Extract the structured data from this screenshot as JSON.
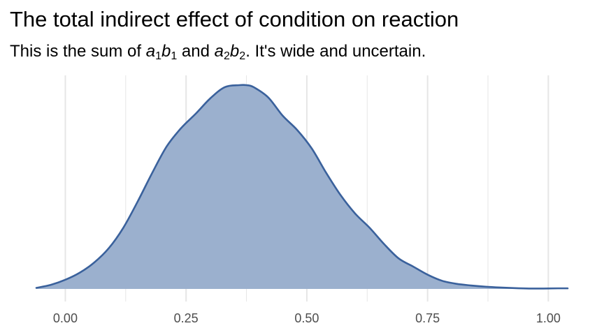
{
  "chart_data": {
    "type": "area",
    "title": "The total indirect effect of condition on reaction",
    "subtitle": {
      "before": "This is the sum of ",
      "t1_var_a": "a",
      "t1_sub_a": "1",
      "t1_var_b": "b",
      "t1_sub_b": "1",
      "middle": " and ",
      "t2_var_a": "a",
      "t2_sub_a": "2",
      "t2_var_b": "b",
      "t2_sub_b": "2",
      "after": ". It's wide and uncertain."
    },
    "xlabel": "",
    "ylabel": "",
    "xlim": [
      -0.06,
      1.04
    ],
    "ylim": [
      0,
      1
    ],
    "x_ticks": [
      0,
      0.25,
      0.5,
      0.75,
      1
    ],
    "x_tick_labels": [
      "0.00",
      "0.25",
      "0.50",
      "0.75",
      "1.00"
    ],
    "minor_gridlines": [
      0.125,
      0.375,
      0.625,
      0.875
    ],
    "y_axis_shown": false,
    "grid": "vertical",
    "fill_color": "#9bb0ce",
    "line_color": "#3a619c",
    "grid_color": "#e6e6e6",
    "series": [
      {
        "x": [
          -0.06,
          -0.03,
          0.0,
          0.03,
          0.06,
          0.09,
          0.12,
          0.15,
          0.18,
          0.21,
          0.24,
          0.27,
          0.3,
          0.33,
          0.36,
          0.375,
          0.39,
          0.42,
          0.45,
          0.48,
          0.51,
          0.54,
          0.57,
          0.6,
          0.63,
          0.66,
          0.69,
          0.72,
          0.75,
          0.78,
          0.81,
          0.84,
          0.87,
          0.9,
          0.93,
          0.96,
          0.99,
          1.02,
          1.04
        ],
        "y": [
          0.005,
          0.02,
          0.045,
          0.08,
          0.13,
          0.2,
          0.3,
          0.43,
          0.57,
          0.7,
          0.79,
          0.86,
          0.935,
          0.99,
          1.0,
          1.0,
          0.99,
          0.94,
          0.85,
          0.78,
          0.69,
          0.57,
          0.46,
          0.37,
          0.3,
          0.22,
          0.15,
          0.11,
          0.07,
          0.04,
          0.025,
          0.017,
          0.011,
          0.007,
          0.004,
          0.002,
          0.002,
          0.003,
          0.003
        ]
      }
    ]
  }
}
